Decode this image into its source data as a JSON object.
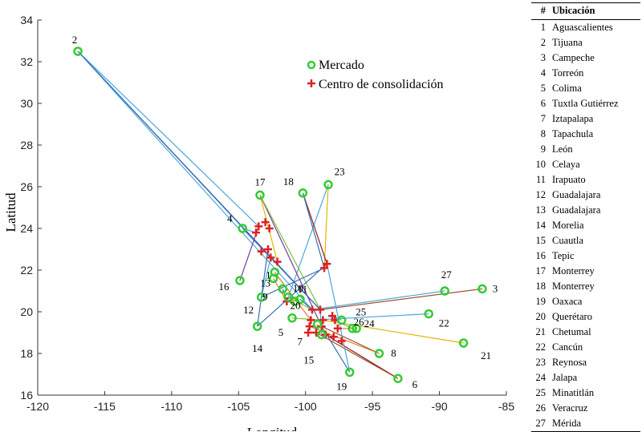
{
  "chart_data": {
    "type": "scatter",
    "xlabel": "Longitud",
    "ylabel": "Latitud",
    "xlim": [
      -120,
      -85
    ],
    "ylim": [
      16,
      34
    ],
    "xticks": [
      -120,
      -115,
      -110,
      -105,
      -100,
      -95,
      -90,
      -85
    ],
    "yticks": [
      16,
      18,
      20,
      22,
      24,
      26,
      28,
      30,
      32,
      34
    ],
    "grid": false,
    "legend_position": "top-center",
    "legend": [
      {
        "name": "Mercado",
        "marker": "circle",
        "color": "#33cc33"
      },
      {
        "name": "Centro de consolidación",
        "marker": "plus",
        "color": "#dd2222"
      }
    ],
    "markets": [
      {
        "id": "1",
        "x": -102.3,
        "y": 21.9
      },
      {
        "id": "2",
        "x": -117.0,
        "y": 32.5
      },
      {
        "id": "3",
        "x": -86.8,
        "y": 21.1
      },
      {
        "id": "4",
        "x": -104.7,
        "y": 24.0
      },
      {
        "id": "5",
        "x": -101.0,
        "y": 19.7
      },
      {
        "id": "6",
        "x": -93.1,
        "y": 16.8
      },
      {
        "id": "7",
        "x": -99.1,
        "y": 19.4
      },
      {
        "id": "8",
        "x": -94.5,
        "y": 18.0
      },
      {
        "id": "9",
        "x": -101.7,
        "y": 21.1
      },
      {
        "id": "10",
        "x": -100.8,
        "y": 20.5
      },
      {
        "id": "11",
        "x": -101.3,
        "y": 20.7
      },
      {
        "id": "12",
        "x": -103.3,
        "y": 20.7
      },
      {
        "id": "13",
        "x": -102.4,
        "y": 21.6
      },
      {
        "id": "14",
        "x": -103.6,
        "y": 19.3
      },
      {
        "id": "15",
        "x": -98.8,
        "y": 18.9
      },
      {
        "id": "16",
        "x": -104.9,
        "y": 21.5
      },
      {
        "id": "17",
        "x": -103.4,
        "y": 25.6
      },
      {
        "id": "18",
        "x": -100.2,
        "y": 25.7
      },
      {
        "id": "19",
        "x": -96.7,
        "y": 17.1
      },
      {
        "id": "20",
        "x": -100.4,
        "y": 20.6
      },
      {
        "id": "21",
        "x": -88.2,
        "y": 18.5
      },
      {
        "id": "22",
        "x": -90.8,
        "y": 19.9
      },
      {
        "id": "23",
        "x": -98.3,
        "y": 26.1
      },
      {
        "id": "24",
        "x": -96.2,
        "y": 19.2
      },
      {
        "id": "25",
        "x": -97.3,
        "y": 19.6
      },
      {
        "id": "26",
        "x": -96.5,
        "y": 19.2
      },
      {
        "id": "27",
        "x": -89.6,
        "y": 21.0
      }
    ],
    "centers": [
      {
        "x": -103.0,
        "y": 24.3
      },
      {
        "x": -103.5,
        "y": 24.1
      },
      {
        "x": -102.7,
        "y": 24.0
      },
      {
        "x": -103.7,
        "y": 23.8
      },
      {
        "x": -102.8,
        "y": 23.0
      },
      {
        "x": -103.3,
        "y": 22.9
      },
      {
        "x": -102.6,
        "y": 22.6
      },
      {
        "x": -102.1,
        "y": 22.4
      },
      {
        "x": -98.4,
        "y": 22.3
      },
      {
        "x": -98.6,
        "y": 22.1
      },
      {
        "x": -101.4,
        "y": 20.5
      },
      {
        "x": -99.5,
        "y": 20.1
      },
      {
        "x": -98.9,
        "y": 20.1
      },
      {
        "x": -98.0,
        "y": 19.8
      },
      {
        "x": -99.6,
        "y": 19.6
      },
      {
        "x": -98.7,
        "y": 19.6
      },
      {
        "x": -97.8,
        "y": 19.6
      },
      {
        "x": -99.7,
        "y": 19.3
      },
      {
        "x": -98.8,
        "y": 19.3
      },
      {
        "x": -97.6,
        "y": 19.2
      },
      {
        "x": -99.2,
        "y": 19.0
      },
      {
        "x": -98.5,
        "y": 18.9
      },
      {
        "x": -97.9,
        "y": 18.8
      },
      {
        "x": -97.3,
        "y": 18.6
      },
      {
        "x": -99.8,
        "y": 19.0
      }
    ],
    "connections": [
      {
        "from": "2",
        "to": [
          -103.5,
          24.1
        ],
        "color": "#4aa8dc"
      },
      {
        "from": "2",
        "to": [
          -102.6,
          22.6
        ],
        "color": "#3a6fb8"
      },
      {
        "from": "2",
        "to": [
          -99.5,
          20.1
        ],
        "color": "#4aa8dc"
      },
      {
        "from": "2",
        "to": [
          -98.9,
          20.1
        ],
        "color": "#3a6fb8"
      },
      {
        "from": "3",
        "to": [
          -98.9,
          20.1
        ],
        "color": "#a0522d"
      },
      {
        "from": "27",
        "to": [
          -99.5,
          20.1
        ],
        "color": "#4aa8dc"
      },
      {
        "from": "22",
        "to": [
          -99.6,
          19.6
        ],
        "color": "#4aa8dc"
      },
      {
        "from": "21",
        "to": [
          -98.7,
          19.6
        ],
        "color": "#e3b505"
      },
      {
        "from": "6",
        "to": [
          -98.5,
          18.9
        ],
        "color": "#8b1a1a"
      },
      {
        "from": "6",
        "to": [
          -99.2,
          19.0
        ],
        "color": "#a0522d"
      },
      {
        "from": "8",
        "to": [
          -98.8,
          19.3
        ],
        "color": "#a0522d"
      },
      {
        "from": "8",
        "to": [
          -99.7,
          19.3
        ],
        "color": "#e07a2d"
      },
      {
        "from": "19",
        "to": [
          -98.8,
          19.3
        ],
        "color": "#3a6fb8"
      },
      {
        "from": "19",
        "to": [
          -98.4,
          22.3
        ],
        "color": "#4aa8dc"
      },
      {
        "from": "23",
        "to": [
          -98.6,
          22.1
        ],
        "color": "#e3b505"
      },
      {
        "from": "23",
        "to": [
          -101.4,
          20.5
        ],
        "color": "#4aa8dc"
      },
      {
        "from": "18",
        "to": [
          -98.4,
          22.3
        ],
        "color": "#8b1a1a"
      },
      {
        "from": "18",
        "to": [
          -98.6,
          22.1
        ],
        "color": "#3a6fb8"
      },
      {
        "from": "17",
        "to": [
          -102.1,
          22.4
        ],
        "color": "#e3b505"
      },
      {
        "from": "17",
        "to": [
          -98.8,
          19.3
        ],
        "color": "#7b3fa0"
      },
      {
        "from": "17",
        "to": [
          -98.9,
          20.1
        ],
        "color": "#7bbf3a"
      },
      {
        "from": "4",
        "to": [
          -98.9,
          20.1
        ],
        "color": "#3a6fb8"
      },
      {
        "from": "4",
        "to": [
          -103.7,
          23.8
        ],
        "color": "#4aa8dc"
      },
      {
        "from": "16",
        "to": [
          -103.5,
          24.1
        ],
        "color": "#7b3fa0"
      },
      {
        "from": "12",
        "to": [
          -102.6,
          22.6
        ],
        "color": "#4aa8dc"
      },
      {
        "from": "12",
        "to": [
          -98.6,
          22.1
        ],
        "color": "#3a6fb8"
      },
      {
        "from": "14",
        "to": [
          -102.8,
          23.0
        ],
        "color": "#3a6fb8"
      },
      {
        "from": "14",
        "to": [
          -98.4,
          22.3
        ],
        "color": "#3a6fb8"
      },
      {
        "from": "13",
        "to": [
          -101.4,
          20.5
        ],
        "color": "#e07a2d"
      },
      {
        "from": "1",
        "to": [
          -99.6,
          19.6
        ],
        "color": "#e07a2d"
      },
      {
        "from": "5",
        "to": [
          -98.7,
          19.6
        ],
        "color": "#7bbf3a"
      },
      {
        "from": "10",
        "to": [
          -101.4,
          20.5
        ],
        "color": "#e07a2d"
      },
      {
        "from": "9",
        "to": [
          -101.4,
          20.5
        ],
        "color": "#3a6fb8"
      },
      {
        "from": "24",
        "to": [
          -97.6,
          19.2
        ],
        "color": "#e07a2d"
      },
      {
        "from": "25",
        "to": [
          -98.0,
          19.8
        ],
        "color": "#4aa8dc"
      },
      {
        "from": "26",
        "to": [
          -97.8,
          19.6
        ],
        "color": "#7bbf3a"
      },
      {
        "from": "15",
        "to": [
          -98.9,
          20.1
        ],
        "color": "#4aa8dc"
      },
      {
        "from": "20",
        "to": [
          -99.5,
          20.1
        ],
        "color": "#3a6fb8"
      },
      {
        "from": "7",
        "to": [
          -99.2,
          19.0
        ],
        "color": "#e07a2d"
      },
      {
        "from": "11",
        "to": [
          -99.5,
          20.1
        ],
        "color": "#7bbf3a"
      }
    ]
  },
  "table": {
    "headers": [
      "#",
      "Ubicación"
    ],
    "rows": [
      [
        "1",
        "Aguascalientes"
      ],
      [
        "2",
        "Tijuana"
      ],
      [
        "3",
        "Campeche"
      ],
      [
        "4",
        "Torreón"
      ],
      [
        "5",
        "Colima"
      ],
      [
        "6",
        "Tuxtla Gutiérrez"
      ],
      [
        "7",
        "Iztapalapa"
      ],
      [
        "8",
        "Tapachula"
      ],
      [
        "9",
        "León"
      ],
      [
        "10",
        "Celaya"
      ],
      [
        "11",
        "Irapuato"
      ],
      [
        "12",
        "Guadalajara"
      ],
      [
        "13",
        "Guadalajara"
      ],
      [
        "14",
        "Morelia"
      ],
      [
        "15",
        "Cuautla"
      ],
      [
        "16",
        "Tepic"
      ],
      [
        "17",
        "Monterrey"
      ],
      [
        "18",
        "Monterrey"
      ],
      [
        "19",
        "Oaxaca"
      ],
      [
        "20",
        "Querétaro"
      ],
      [
        "21",
        "Chetumal"
      ],
      [
        "22",
        "Cancún"
      ],
      [
        "23",
        "Reynosa"
      ],
      [
        "24",
        "Jalapa"
      ],
      [
        "25",
        "Minatitlán"
      ],
      [
        "26",
        "Veracruz"
      ],
      [
        "27",
        "Mérida"
      ]
    ]
  }
}
